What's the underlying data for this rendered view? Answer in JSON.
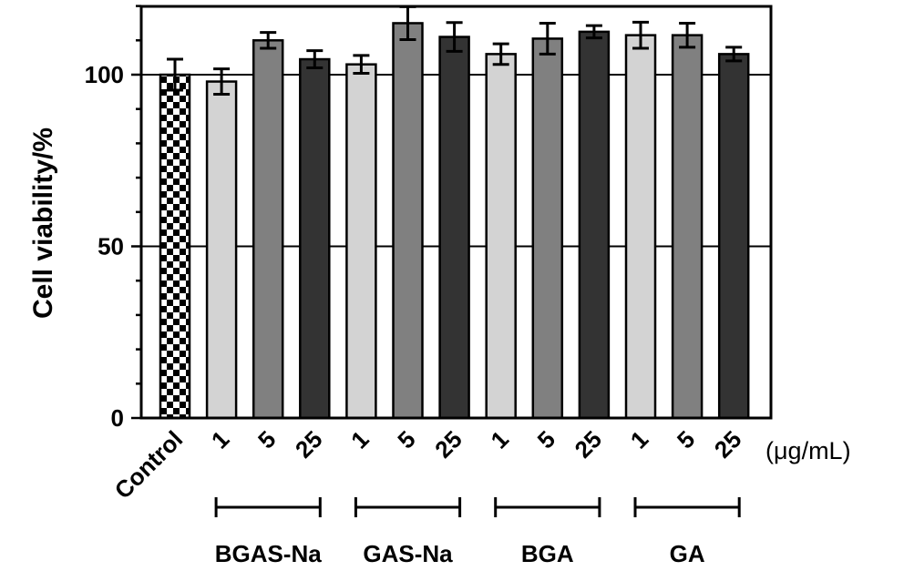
{
  "chart_data": {
    "type": "bar",
    "title": "",
    "xlabel": "",
    "ylabel": "Cell viability/%",
    "ylim": [
      0,
      120
    ],
    "yticks": [
      0,
      50,
      100
    ],
    "grid_lines": [
      50,
      100
    ],
    "unit_label": "(μg/mL)",
    "categories": [
      "Control",
      "1",
      "5",
      "25",
      "1",
      "5",
      "25",
      "1",
      "5",
      "25",
      "1",
      "5",
      "25"
    ],
    "bars": [
      {
        "group": "Control",
        "concentration": "Control",
        "value": 100,
        "error": 4.5,
        "fill": "checker"
      },
      {
        "group": "BGAS-Na",
        "concentration": "1",
        "value": 98,
        "error": 3.7,
        "fill": "#d3d3d3"
      },
      {
        "group": "BGAS-Na",
        "concentration": "5",
        "value": 110,
        "error": 2.3,
        "fill": "#808080"
      },
      {
        "group": "BGAS-Na",
        "concentration": "25",
        "value": 104.5,
        "error": 2.5,
        "fill": "#333333"
      },
      {
        "group": "GAS-Na",
        "concentration": "1",
        "value": 103,
        "error": 2.6,
        "fill": "#d3d3d3"
      },
      {
        "group": "GAS-Na",
        "concentration": "5",
        "value": 115,
        "error": 4.8,
        "fill": "#808080"
      },
      {
        "group": "GAS-Na",
        "concentration": "25",
        "value": 111,
        "error": 4.2,
        "fill": "#333333"
      },
      {
        "group": "BGA",
        "concentration": "1",
        "value": 106,
        "error": 3.0,
        "fill": "#d3d3d3"
      },
      {
        "group": "BGA",
        "concentration": "5",
        "value": 110.5,
        "error": 4.5,
        "fill": "#808080"
      },
      {
        "group": "BGA",
        "concentration": "25",
        "value": 112.5,
        "error": 1.8,
        "fill": "#333333"
      },
      {
        "group": "GA",
        "concentration": "1",
        "value": 111.5,
        "error": 3.8,
        "fill": "#d3d3d3"
      },
      {
        "group": "GA",
        "concentration": "5",
        "value": 111.5,
        "error": 3.5,
        "fill": "#808080"
      },
      {
        "group": "GA",
        "concentration": "25",
        "value": 106,
        "error": 2.0,
        "fill": "#333333"
      }
    ],
    "groups": [
      {
        "name": "BGAS-Na",
        "bars": [
          1,
          2,
          3
        ]
      },
      {
        "name": "GAS-Na",
        "bars": [
          4,
          5,
          6
        ]
      },
      {
        "name": "BGA",
        "bars": [
          7,
          8,
          9
        ]
      },
      {
        "name": "GA",
        "bars": [
          10,
          11,
          12
        ]
      }
    ]
  }
}
